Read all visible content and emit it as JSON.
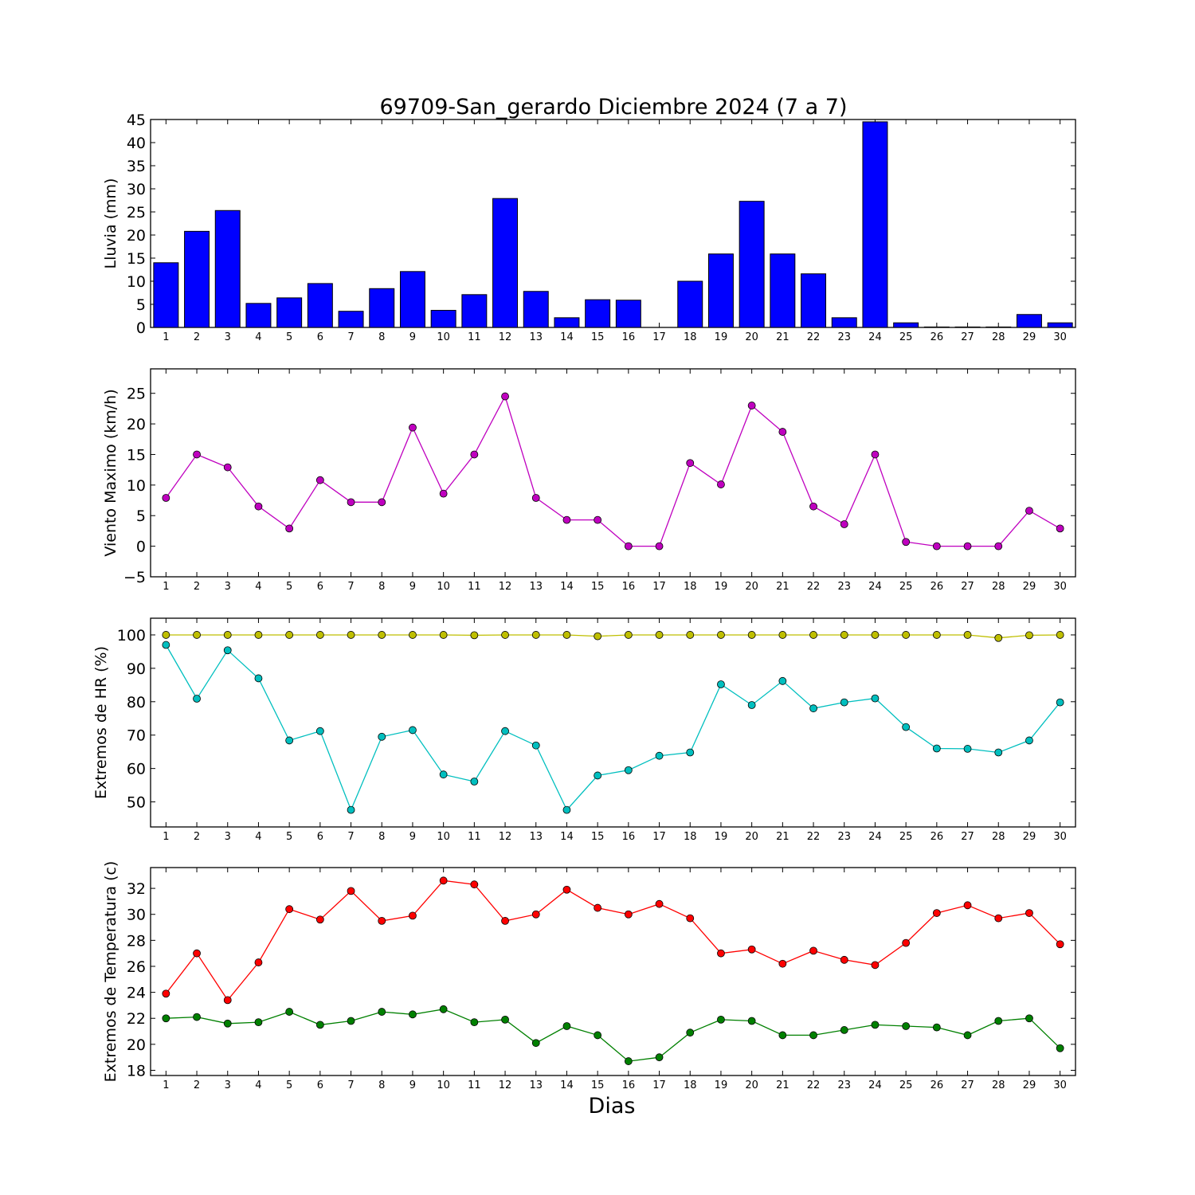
{
  "figure": {
    "title": "69709-San_gerardo Diciembre 2024  (7 a 7)",
    "xlabel": "Dias"
  },
  "colors": {
    "rain": "#0000ff",
    "wind": "#bf00bf",
    "hr_max": "#bfbf00",
    "hr_min": "#00bfbf",
    "temp_max": "#ff0000",
    "temp_min": "#008000"
  },
  "chart_data": [
    {
      "type": "bar",
      "ylabel": "Lluvia (mm)",
      "categories": [
        1,
        2,
        3,
        4,
        5,
        6,
        7,
        8,
        9,
        10,
        11,
        12,
        13,
        14,
        15,
        16,
        17,
        18,
        19,
        20,
        21,
        22,
        23,
        24,
        25,
        26,
        27,
        28,
        29,
        30
      ],
      "values": [
        14,
        20.8,
        25.3,
        5.2,
        6.4,
        9.5,
        3.5,
        8.4,
        12.1,
        3.7,
        7.1,
        27.9,
        7.8,
        2.1,
        6,
        5.9,
        0,
        10,
        15.9,
        27.3,
        15.9,
        11.6,
        2.1,
        44.5,
        1,
        0.1,
        0.1,
        0.1,
        2.8,
        1
      ],
      "ylim": [
        0,
        45
      ],
      "yticks": [
        0,
        5,
        10,
        15,
        20,
        25,
        30,
        35,
        40,
        45
      ],
      "grid": false
    },
    {
      "type": "line",
      "ylabel": "Viento Maximo (km/h)",
      "x": [
        1,
        2,
        3,
        4,
        5,
        6,
        7,
        8,
        9,
        10,
        11,
        12,
        13,
        14,
        15,
        16,
        17,
        18,
        19,
        20,
        21,
        22,
        23,
        24,
        25,
        26,
        27,
        28,
        29,
        30
      ],
      "series": [
        {
          "values": [
            7.9,
            15,
            12.9,
            6.5,
            2.9,
            10.8,
            7.2,
            7.2,
            19.4,
            8.6,
            15,
            24.5,
            7.9,
            4.3,
            4.3,
            0,
            0,
            13.6,
            10.1,
            23,
            18.7,
            6.5,
            3.6,
            15,
            0.7,
            0,
            0,
            0,
            5.8,
            2.9
          ]
        }
      ],
      "ylim": [
        -5,
        29
      ],
      "yticks": [
        -5,
        0,
        5,
        10,
        15,
        20,
        25
      ],
      "grid": false
    },
    {
      "type": "line",
      "ylabel": "Extremos de HR (%)",
      "x": [
        1,
        2,
        3,
        4,
        5,
        6,
        7,
        8,
        9,
        10,
        11,
        12,
        13,
        14,
        15,
        16,
        17,
        18,
        19,
        20,
        21,
        22,
        23,
        24,
        25,
        26,
        27,
        28,
        29,
        30
      ],
      "series": [
        {
          "values": [
            100,
            100,
            100,
            100,
            100,
            100,
            100,
            100,
            100,
            100,
            99.9,
            100,
            100,
            100,
            99.6,
            100,
            100,
            100,
            100,
            100,
            100,
            100,
            100,
            100,
            100,
            100,
            100,
            99.1,
            99.9,
            100
          ]
        },
        {
          "values": [
            97,
            80.9,
            95.4,
            87,
            68.4,
            71.2,
            47.6,
            69.5,
            71.5,
            58.2,
            56.1,
            71.2,
            66.9,
            47.6,
            57.9,
            59.5,
            63.8,
            64.8,
            85.2,
            79,
            86.2,
            78,
            79.8,
            81,
            72.4,
            66,
            65.9,
            64.8,
            68.4,
            79.8
          ]
        }
      ],
      "ylim": [
        42.5,
        105
      ],
      "yticks": [
        50,
        60,
        70,
        80,
        90,
        100
      ],
      "grid": false
    },
    {
      "type": "line",
      "ylabel": "Extremos de Temperatura (c)",
      "x": [
        1,
        2,
        3,
        4,
        5,
        6,
        7,
        8,
        9,
        10,
        11,
        12,
        13,
        14,
        15,
        16,
        17,
        18,
        19,
        20,
        21,
        22,
        23,
        24,
        25,
        26,
        27,
        28,
        29,
        30
      ],
      "series": [
        {
          "values": [
            23.9,
            27,
            23.4,
            26.3,
            30.4,
            29.6,
            31.8,
            29.5,
            29.9,
            32.6,
            32.3,
            29.5,
            30,
            31.9,
            30.5,
            30,
            30.8,
            29.7,
            27,
            27.3,
            26.2,
            27.2,
            26.5,
            26.1,
            27.8,
            30.1,
            30.7,
            29.7,
            30.1,
            27.7
          ]
        },
        {
          "values": [
            22,
            22.1,
            21.6,
            21.7,
            22.5,
            21.5,
            21.8,
            22.5,
            22.3,
            22.7,
            21.7,
            21.9,
            20.1,
            21.4,
            20.7,
            18.7,
            19,
            20.9,
            21.9,
            21.8,
            20.7,
            20.7,
            21.1,
            21.5,
            21.4,
            21.3,
            20.7,
            21.8,
            22,
            19.7
          ]
        }
      ],
      "ylim": [
        17.6,
        33.6
      ],
      "yticks": [
        18,
        20,
        22,
        24,
        26,
        28,
        30,
        32
      ],
      "grid": false
    }
  ]
}
